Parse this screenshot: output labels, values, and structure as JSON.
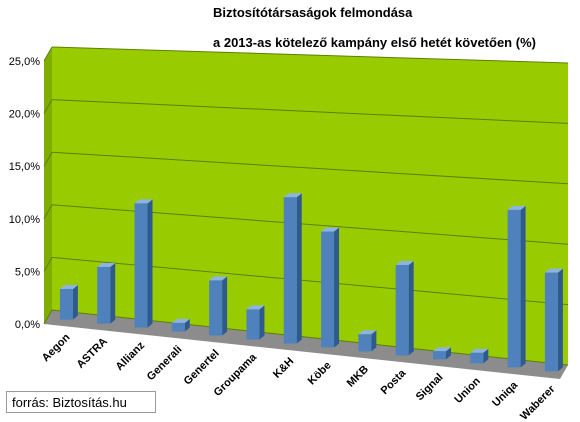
{
  "chart_data": {
    "type": "bar",
    "title_line1": "Biztosítótársaságok  felmondása",
    "title_line2": "a 2013-as kötelező kampány első hetét követően (%)",
    "categories": [
      "Aegon",
      "ASTRA",
      "Allianz",
      "Generali",
      "Genertel",
      "Groupama",
      "K&H",
      "Köbe",
      "MKB",
      "Posta",
      "Signal",
      "Union",
      "Uniqa",
      "Waberer"
    ],
    "values": [
      2.9,
      5.3,
      11.5,
      0.8,
      5.0,
      2.7,
      13.0,
      10.2,
      1.5,
      7.8,
      0.7,
      0.9,
      13.2,
      8.2
    ],
    "y_ticks": [
      "0,0%",
      "5,0%",
      "10,0%",
      "15,0%",
      "20,0%",
      "25,0%"
    ],
    "ylim": [
      0,
      25
    ],
    "grid": true,
    "colors": {
      "plot_bg": "#99CC00",
      "bar_front": "#4F81BD",
      "bar_side": "#2E5A8E",
      "bar_top": "#8DB3E2",
      "floor": "#8C8C8C"
    }
  },
  "source": "forrás: Biztosítás.hu"
}
